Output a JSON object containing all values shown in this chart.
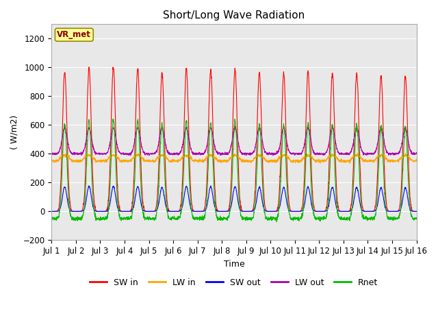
{
  "title": "Short/Long Wave Radiation",
  "xlabel": "Time",
  "ylabel": "( W/m2)",
  "ylim": [
    -200,
    1300
  ],
  "yticks": [
    -200,
    0,
    200,
    400,
    600,
    800,
    1000,
    1200
  ],
  "xlim": [
    0,
    15
  ],
  "xtick_labels": [
    "Jul 1",
    "Jul 2",
    "Jul 3",
    "Jul 4",
    "Jul 5",
    "Jul 6",
    "Jul 7",
    "Jul 8",
    "Jul 9",
    "Jul 10",
    "Jul 11",
    "Jul 12",
    "Jul 13",
    "Jul 14",
    "Jul 15",
    "Jul 16"
  ],
  "xtick_positions": [
    0,
    1,
    2,
    3,
    4,
    5,
    6,
    7,
    8,
    9,
    10,
    11,
    12,
    13,
    14,
    15
  ],
  "label_annotation": "VR_met",
  "colors": {
    "SW_in": "#ff0000",
    "LW_in": "#ffa500",
    "SW_out": "#0000ff",
    "LW_out": "#aa00aa",
    "Rnet": "#00bb00"
  },
  "legend_labels": [
    "SW in",
    "LW in",
    "SW out",
    "LW out",
    "Rnet"
  ],
  "fig_bg_color": "#ffffff",
  "plot_bg_color": "#e8e8e8",
  "n_days": 15,
  "pts_per_day": 144,
  "SW_in_peaks": [
    970,
    1000,
    1000,
    990,
    960,
    990,
    980,
    990,
    960,
    960,
    970,
    960,
    960,
    940,
    940
  ],
  "title_fontsize": 11,
  "axis_label_fontsize": 9,
  "tick_fontsize": 8.5,
  "legend_fontsize": 9
}
